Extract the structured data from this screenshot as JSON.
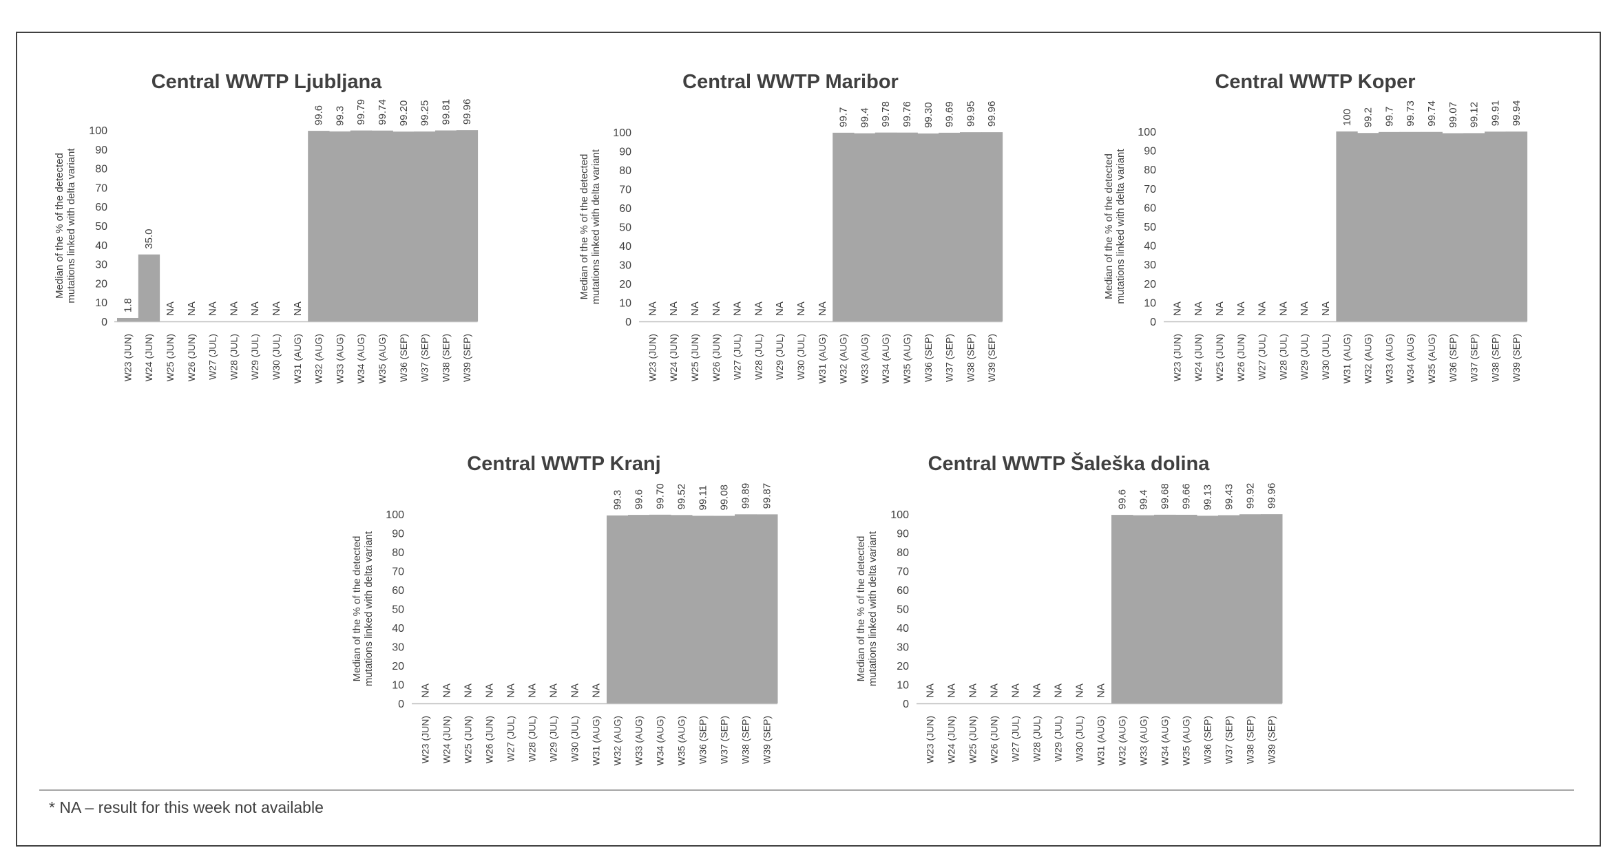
{
  "footnote": "* NA – result for this week not available",
  "colors": {
    "bar": "#a6a6a6",
    "text": "#404040",
    "axis": "#bfbfbf",
    "frame": "#404040"
  },
  "chart_data": [
    {
      "type": "bar",
      "title": "Central WWTP Ljubljana",
      "ylabel": [
        "Median of the % of the detected",
        "mutations linked with delta variant"
      ],
      "xlabel": "",
      "ylim": [
        0,
        100
      ],
      "yticks": [
        0,
        10,
        20,
        30,
        40,
        50,
        60,
        70,
        80,
        90,
        100
      ],
      "categories": [
        "W23 (JUN)",
        "W24 (JUN)",
        "W25 (JUN)",
        "W26 (JUN)",
        "W27 (JUL)",
        "W28 (JUL)",
        "W29 (JUL)",
        "W30 (JUL)",
        "W31 (AUG)",
        "W32 (AUG)",
        "W33 (AUG)",
        "W34 (AUG)",
        "W35 (AUG)",
        "W36 (SEP)",
        "W37 (SEP)",
        "W38 (SEP)",
        "W39 (SEP)"
      ],
      "values": [
        1.8,
        35.0,
        null,
        null,
        null,
        null,
        null,
        null,
        null,
        99.6,
        99.3,
        99.79,
        99.74,
        99.2,
        99.25,
        99.81,
        99.96
      ],
      "labels": [
        "1.8",
        "35.0",
        "NA",
        "NA",
        "NA",
        "NA",
        "NA",
        "NA",
        "NA",
        "99.6",
        "99.3",
        "99.79",
        "99.74",
        "99.20",
        "99.25",
        "99.81",
        "99.96"
      ]
    },
    {
      "type": "bar",
      "title": "Central WWTP Maribor",
      "ylabel": [
        "Median of the % of the detected",
        "mutations linked with delta variant"
      ],
      "xlabel": "",
      "ylim": [
        0,
        100
      ],
      "yticks": [
        0,
        10,
        20,
        30,
        40,
        50,
        60,
        70,
        80,
        90,
        100
      ],
      "categories": [
        "W23 (JUN)",
        "W24 (JUN)",
        "W25 (JUN)",
        "W26 (JUN)",
        "W27 (JUL)",
        "W28 (JUL)",
        "W29 (JUL)",
        "W30 (JUL)",
        "W31 (AUG)",
        "W32 (AUG)",
        "W33 (AUG)",
        "W34 (AUG)",
        "W35 (AUG)",
        "W36 (SEP)",
        "W37 (SEP)",
        "W38 (SEP)",
        "W39 (SEP)"
      ],
      "values": [
        null,
        null,
        null,
        null,
        null,
        null,
        null,
        null,
        null,
        99.7,
        99.4,
        99.78,
        99.76,
        99.3,
        99.69,
        99.95,
        99.96
      ],
      "labels": [
        "NA",
        "NA",
        "NA",
        "NA",
        "NA",
        "NA",
        "NA",
        "NA",
        "NA",
        "99.7",
        "99.4",
        "99.78",
        "99.76",
        "99.30",
        "99.69",
        "99.95",
        "99.96"
      ]
    },
    {
      "type": "bar",
      "title": "Central WWTP Koper",
      "ylabel": [
        "Median of the % of the detected",
        "mutations linked with delta variant"
      ],
      "xlabel": "",
      "ylim": [
        0,
        100
      ],
      "yticks": [
        0,
        10,
        20,
        30,
        40,
        50,
        60,
        70,
        80,
        90,
        100
      ],
      "categories": [
        "W23 (JUN)",
        "W24 (JUN)",
        "W25 (JUN)",
        "W26 (JUN)",
        "W27 (JUL)",
        "W28 (JUL)",
        "W29 (JUL)",
        "W30 (JUL)",
        "W31 (AUG)",
        "W32 (AUG)",
        "W33 (AUG)",
        "W34 (AUG)",
        "W35 (AUG)",
        "W36 (SEP)",
        "W37 (SEP)",
        "W38 (SEP)",
        "W39 (SEP)"
      ],
      "values": [
        null,
        null,
        null,
        null,
        null,
        null,
        null,
        null,
        100,
        99.2,
        99.7,
        99.73,
        99.74,
        99.07,
        99.12,
        99.91,
        99.94
      ],
      "labels": [
        "NA",
        "NA",
        "NA",
        "NA",
        "NA",
        "NA",
        "NA",
        "NA",
        "100",
        "99.2",
        "99.7",
        "99.73",
        "99.74",
        "99.07",
        "99.12",
        "99.91",
        "99.94"
      ]
    },
    {
      "type": "bar",
      "title": "Central WWTP Kranj",
      "ylabel": [
        "Median of the % of the detected",
        "mutations linked with delta variant"
      ],
      "xlabel": "",
      "ylim": [
        0,
        100
      ],
      "yticks": [
        0,
        10,
        20,
        30,
        40,
        50,
        60,
        70,
        80,
        90,
        100
      ],
      "categories": [
        "W23 (JUN)",
        "W24 (JUN)",
        "W25 (JUN)",
        "W26 (JUN)",
        "W27 (JUL)",
        "W28 (JUL)",
        "W29 (JUL)",
        "W30 (JUL)",
        "W31 (AUG)",
        "W32 (AUG)",
        "W33 (AUG)",
        "W34 (AUG)",
        "W35 (AUG)",
        "W36 (SEP)",
        "W37 (SEP)",
        "W38 (SEP)",
        "W39 (SEP)"
      ],
      "values": [
        null,
        null,
        null,
        null,
        null,
        null,
        null,
        null,
        null,
        99.3,
        99.6,
        99.7,
        99.52,
        99.11,
        99.08,
        99.89,
        99.87
      ],
      "labels": [
        "NA",
        "NA",
        "NA",
        "NA",
        "NA",
        "NA",
        "NA",
        "NA",
        "NA",
        "99.3",
        "99.6",
        "99.70",
        "99.52",
        "99.11",
        "99.08",
        "99.89",
        "99.87"
      ]
    },
    {
      "type": "bar",
      "title": "Central WWTP Šaleška dolina",
      "ylabel": [
        "Median of the % of the detected",
        "mutations linked with delta variant"
      ],
      "xlabel": "",
      "ylim": [
        0,
        100
      ],
      "yticks": [
        0,
        10,
        20,
        30,
        40,
        50,
        60,
        70,
        80,
        90,
        100
      ],
      "categories": [
        "W23 (JUN)",
        "W24 (JUN)",
        "W25 (JUN)",
        "W26 (JUN)",
        "W27 (JUL)",
        "W28 (JUL)",
        "W29 (JUL)",
        "W30 (JUL)",
        "W31 (AUG)",
        "W32 (AUG)",
        "W33 (AUG)",
        "W34 (AUG)",
        "W35 (AUG)",
        "W36 (SEP)",
        "W37 (SEP)",
        "W38 (SEP)",
        "W39 (SEP)"
      ],
      "values": [
        null,
        null,
        null,
        null,
        null,
        null,
        null,
        null,
        null,
        99.6,
        99.4,
        99.68,
        99.66,
        99.13,
        99.43,
        99.92,
        99.96
      ],
      "labels": [
        "NA",
        "NA",
        "NA",
        "NA",
        "NA",
        "NA",
        "NA",
        "NA",
        "NA",
        "99.6",
        "99.4",
        "99.68",
        "99.66",
        "99.13",
        "99.43",
        "99.92",
        "99.96"
      ]
    }
  ]
}
